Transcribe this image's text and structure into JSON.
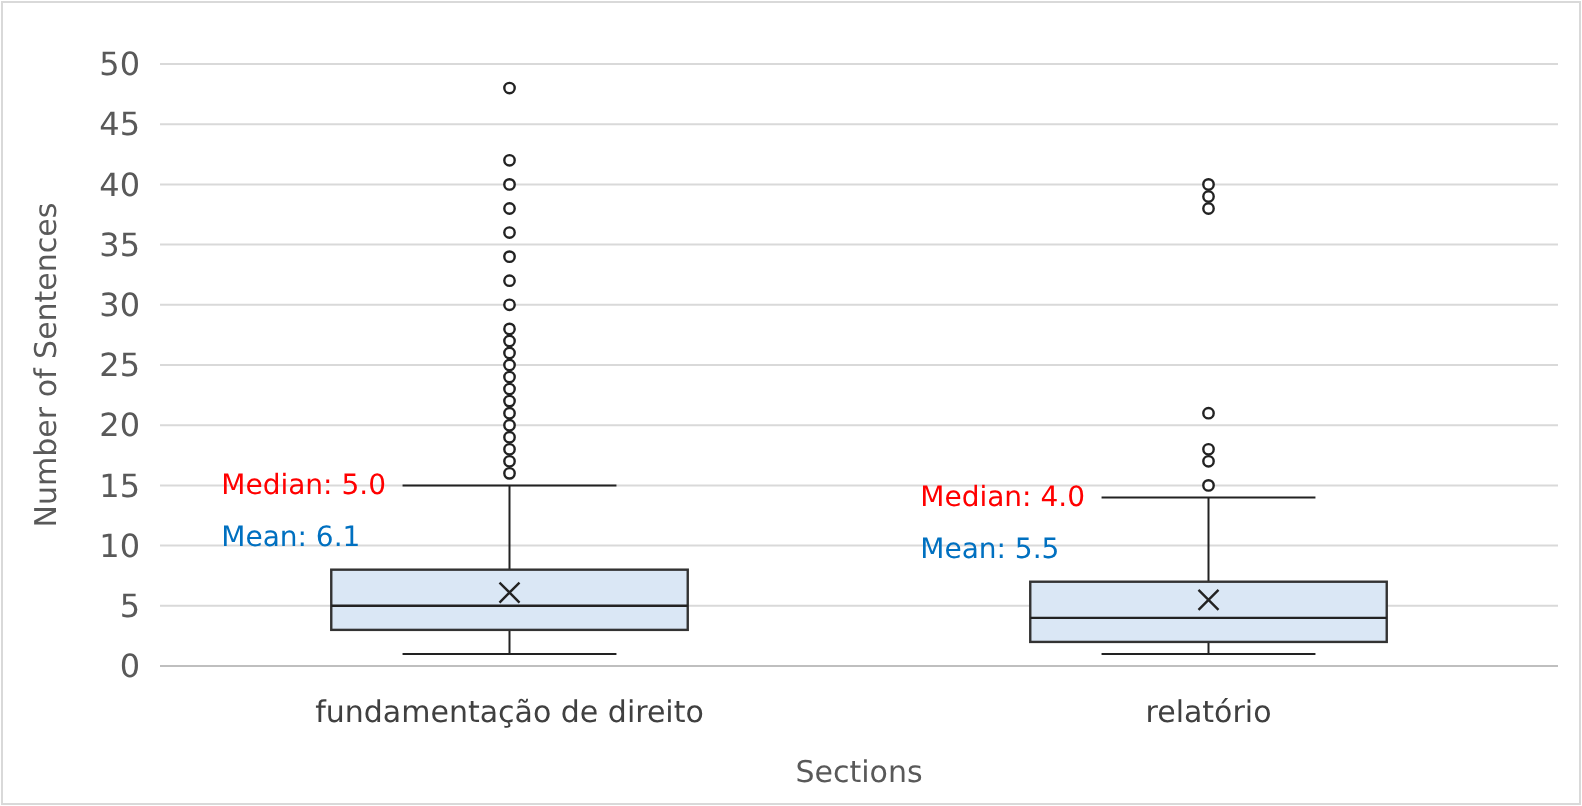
{
  "chart_data": {
    "type": "box",
    "xlabel": "Sections",
    "ylabel": "Number of Sentences",
    "categories": [
      "fundamentação de direito",
      "relatório"
    ],
    "color": "#dae7f5",
    "ylim": [
      0,
      50
    ],
    "yticks": [
      0,
      5,
      10,
      15,
      20,
      25,
      30,
      35,
      40,
      45,
      50
    ],
    "grid": "y",
    "boxes": [
      {
        "low": 1,
        "q1": 3,
        "median": 5,
        "q3": 8,
        "high": 15,
        "mean": 6.1,
        "outliers": [
          16,
          17,
          18,
          19,
          20,
          21,
          22,
          23,
          24,
          25,
          26,
          27,
          28,
          30,
          32,
          34,
          36,
          38,
          40,
          42,
          48
        ]
      },
      {
        "low": 1,
        "q1": 2,
        "median": 4,
        "q3": 7,
        "high": 14,
        "mean": 5.5,
        "outliers": [
          15,
          17,
          18,
          21,
          38,
          39,
          40
        ]
      }
    ],
    "annotations": [
      "Median: 5.0",
      "Mean: 6.1",
      "Median: 4.0",
      "Mean: 5.5"
    ]
  }
}
